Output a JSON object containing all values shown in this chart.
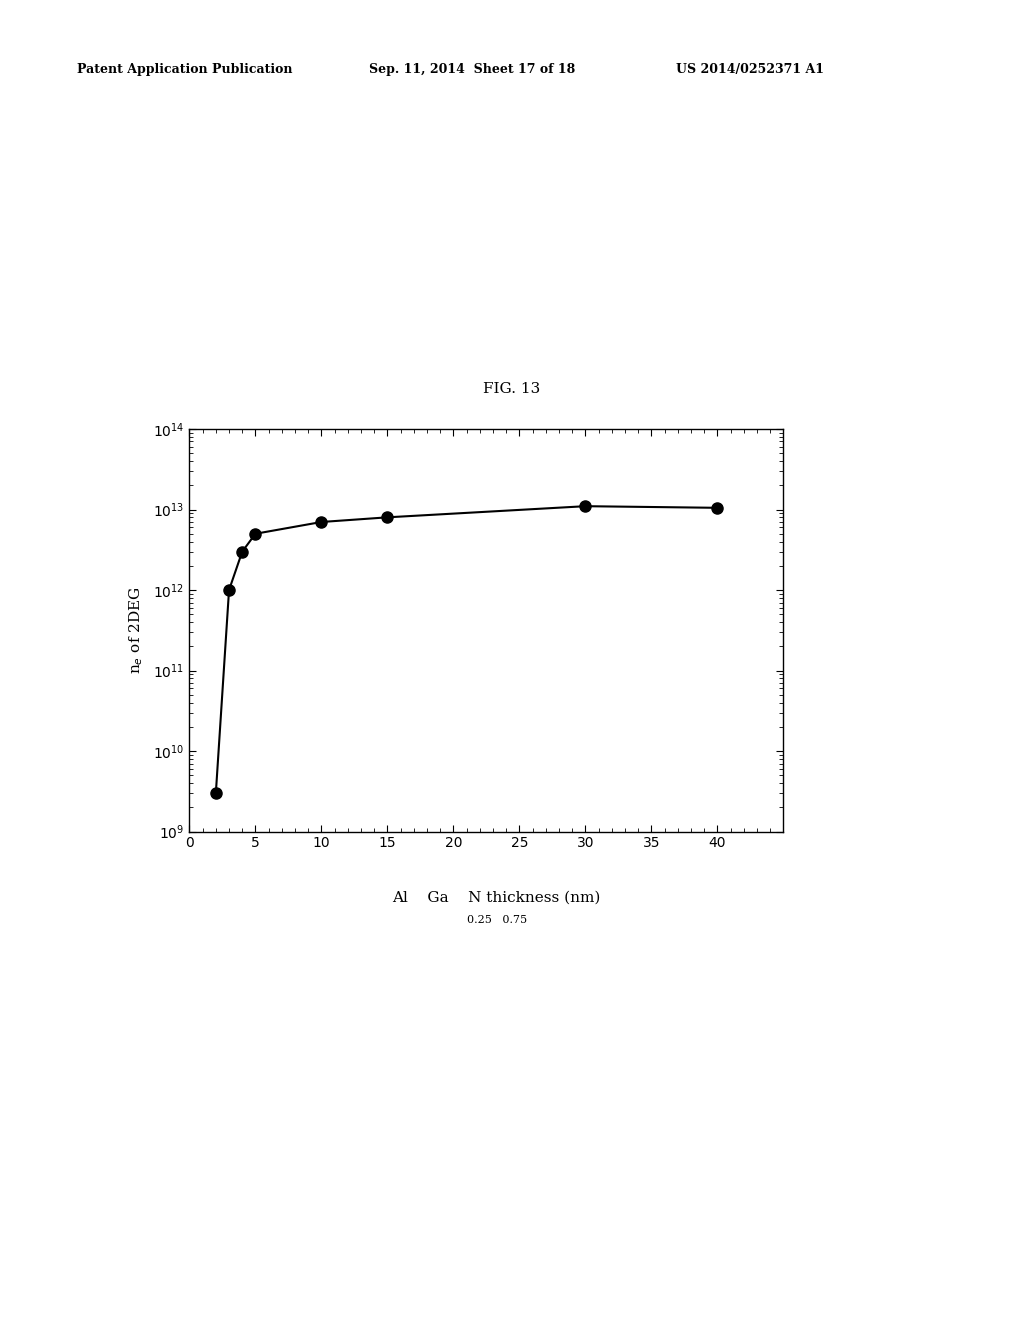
{
  "x_data": [
    2,
    3,
    4,
    5,
    10,
    15,
    30,
    40
  ],
  "y_data": [
    3000000000.0,
    1000000000000.0,
    3000000000000.0,
    5000000000000.0,
    7000000000000.0,
    8000000000000.0,
    11000000000000.0,
    10500000000000.0
  ],
  "xlim": [
    0,
    45
  ],
  "ylim": [
    1000000000.0,
    100000000000000.0
  ],
  "xticks": [
    0,
    5,
    10,
    15,
    20,
    25,
    30,
    35,
    40
  ],
  "ylabel": "n$_e$ of 2DEG",
  "fig_label": "FIG. 13",
  "header_left": "Patent Application Publication",
  "header_mid": "Sep. 11, 2014  Sheet 17 of 18",
  "header_right": "US 2014/0252371 A1",
  "line_color": "#000000",
  "marker_color": "#000000",
  "bg_color": "#ffffff"
}
